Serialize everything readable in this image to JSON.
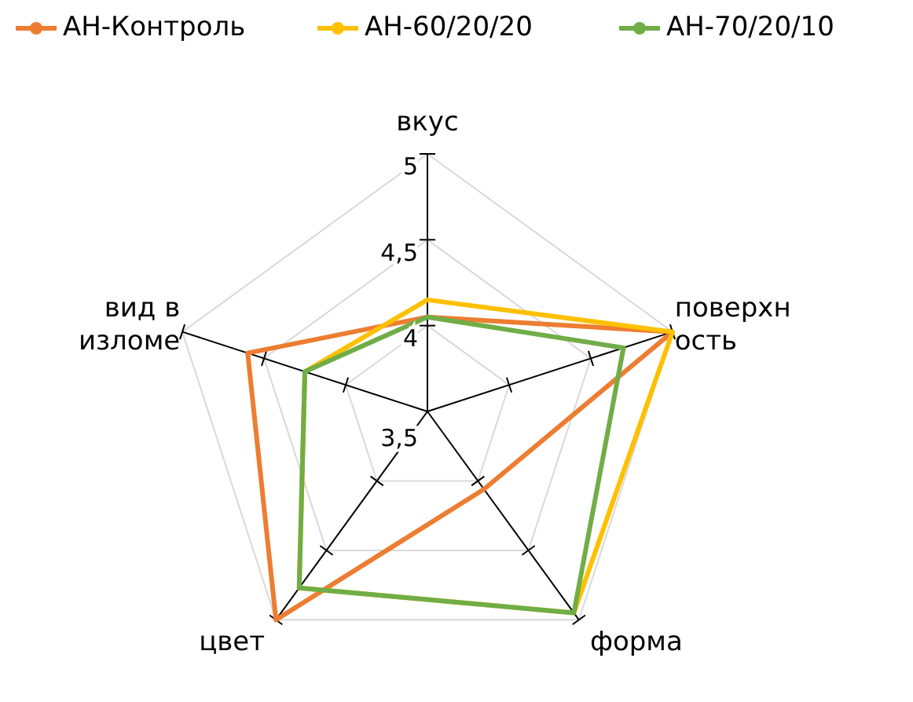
{
  "chart_data": {
    "type": "radar",
    "categories": [
      "вкус",
      "поверхность",
      "форма",
      "цвет",
      "вид в изломе"
    ],
    "series": [
      {
        "name": "АН-Контроль",
        "color": "#ed7d31",
        "values": [
          4.05,
          5,
          4.06,
          5,
          4.6
        ]
      },
      {
        "name": "АН-60/20/20",
        "color": "#ffc000",
        "values": [
          4.15,
          5,
          4.95,
          4.77,
          4.25
        ]
      },
      {
        "name": "АН-70/20/10",
        "color": "#70ad47",
        "values": [
          4.05,
          4.7,
          4.95,
          4.77,
          4.25
        ]
      }
    ],
    "ylim": [
      3.5,
      5
    ],
    "yticks": [
      {
        "value": 3.5,
        "label": "3,5"
      },
      {
        "value": 4,
        "label": "4"
      },
      {
        "value": 4.5,
        "label": "4,5"
      },
      {
        "value": 5,
        "label": "5"
      }
    ],
    "grid": true,
    "legend": "top",
    "marker": "none",
    "line_style": "solid"
  }
}
